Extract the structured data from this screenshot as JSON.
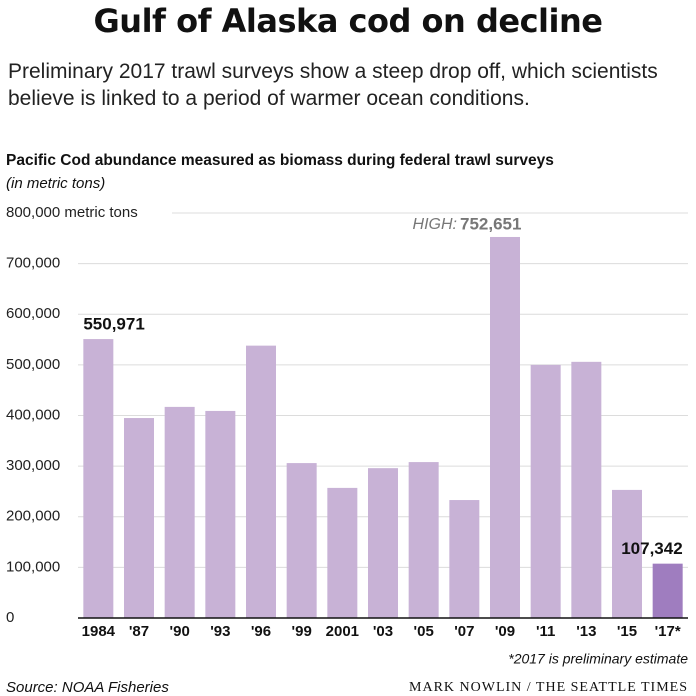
{
  "chart_data": {
    "type": "bar",
    "title": "Gulf of Alaska cod on decline",
    "subtitle": "Preliminary 2017 trawl surveys show a steep drop off, which scientists believe is linked to a period of warmer ocean conditions.",
    "chart_title": "Pacific Cod abundance measured as biomass during federal trawl surveys",
    "units_note": "(in metric tons)",
    "categories": [
      "1984",
      "'87",
      "'90",
      "'93",
      "'96",
      "'99",
      "2001",
      "'03",
      "'05",
      "'07",
      "'09",
      "'11",
      "'13",
      "'15",
      "'17*"
    ],
    "values": [
      550971,
      395000,
      417000,
      409000,
      538000,
      306000,
      257000,
      296000,
      308000,
      233000,
      752651,
      500000,
      506000,
      253000,
      107342
    ],
    "value_labels": [
      "550,971",
      null,
      null,
      null,
      null,
      null,
      null,
      null,
      null,
      null,
      "752,651",
      null,
      null,
      null,
      "107,342"
    ],
    "annotation": "HIGH:",
    "colors": [
      "#c8b2d6",
      "#c8b2d6",
      "#c8b2d6",
      "#c8b2d6",
      "#c8b2d6",
      "#c8b2d6",
      "#c8b2d6",
      "#c8b2d6",
      "#c8b2d6",
      "#c8b2d6",
      "#c8b2d6",
      "#c8b2d6",
      "#c8b2d6",
      "#c8b2d6",
      "#9f7dbf"
    ],
    "ylim": [
      0,
      800000
    ],
    "yticks": [
      0,
      {
        "value": 100000,
        "label": "100,000"
      },
      {
        "value": 200000,
        "label": "200,000"
      },
      {
        "value": 300000,
        "label": "300,000"
      },
      {
        "value": 400000,
        "label": "400,000"
      },
      {
        "value": 500000,
        "label": "500,000"
      },
      {
        "value": 600000,
        "label": "600,000"
      },
      {
        "value": 700000,
        "label": "700,000"
      },
      {
        "value": 800000,
        "label": "800,000 metric tons"
      }
    ],
    "grid": true,
    "footnote": "*2017 is preliminary estimate",
    "source": "Source: NOAA Fisheries",
    "credit": "MARK NOWLIN / THE SEATTLE TIMES"
  }
}
